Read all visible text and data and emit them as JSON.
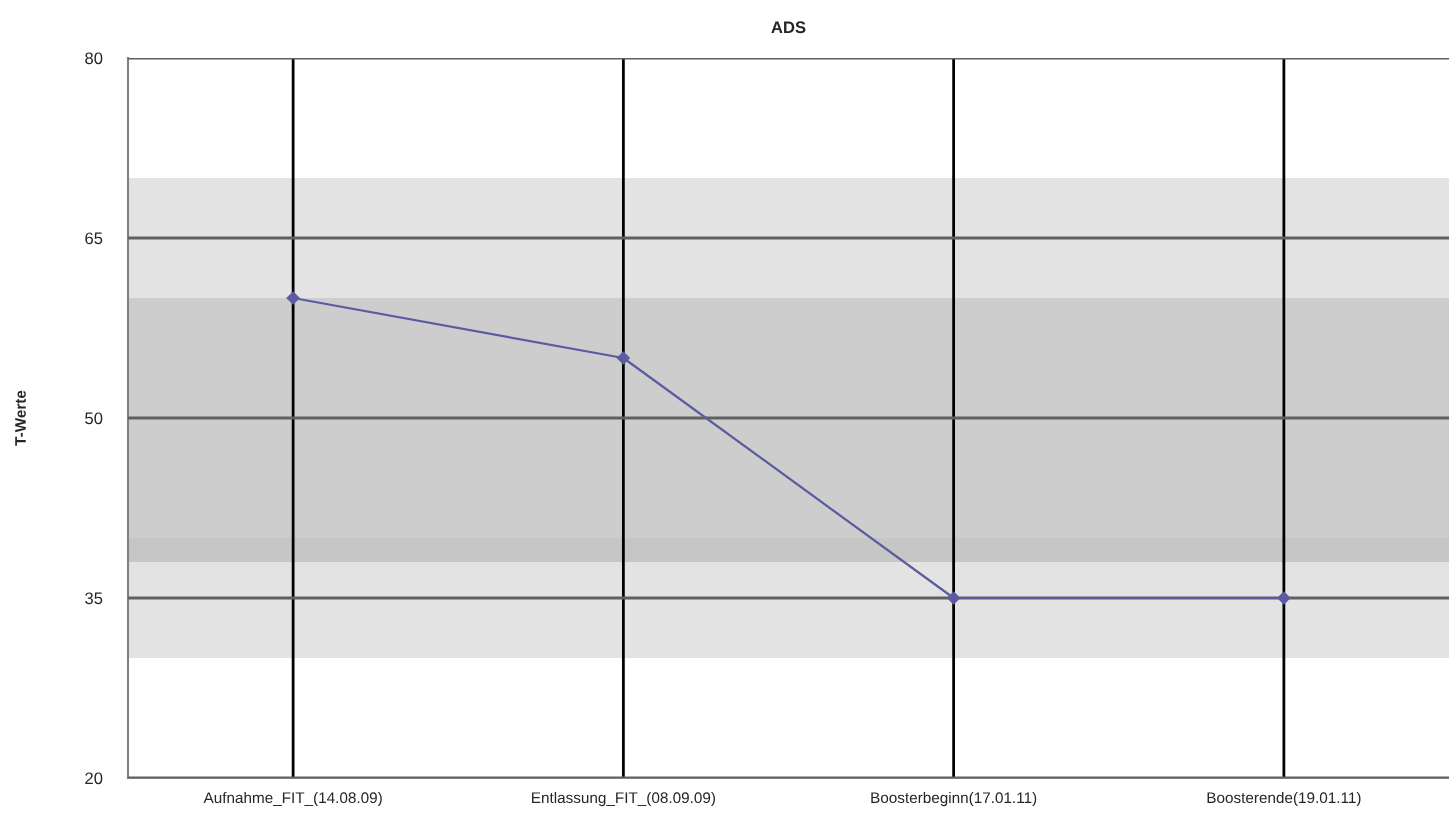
{
  "chart_data": {
    "type": "line",
    "title": "ADS",
    "ylabel": "T-Werte",
    "categories": [
      "Aufnahme_FIT_(14.08.09)",
      "Entlassung_FIT_(08.09.09)",
      "Boosterbeginn(17.01.11)",
      "Boosterende(19.01.11)"
    ],
    "series": [
      {
        "color": "#5b5ba0",
        "values": [
          60,
          55,
          35,
          35
        ]
      }
    ],
    "ylim": [
      20,
      80
    ],
    "yticks": [
      20,
      35,
      50,
      65,
      80
    ],
    "bands": [
      {
        "axis": "y",
        "from": 30,
        "to": 70,
        "color": "#dedede"
      },
      {
        "axis": "y",
        "from": 38,
        "to": 60,
        "color": "#c9c9c9"
      },
      {
        "axis": "y",
        "from": 38,
        "to": 40,
        "color": "#c4c4c4"
      }
    ],
    "grid": true,
    "marker": "diamond",
    "line_style": "solid"
  }
}
